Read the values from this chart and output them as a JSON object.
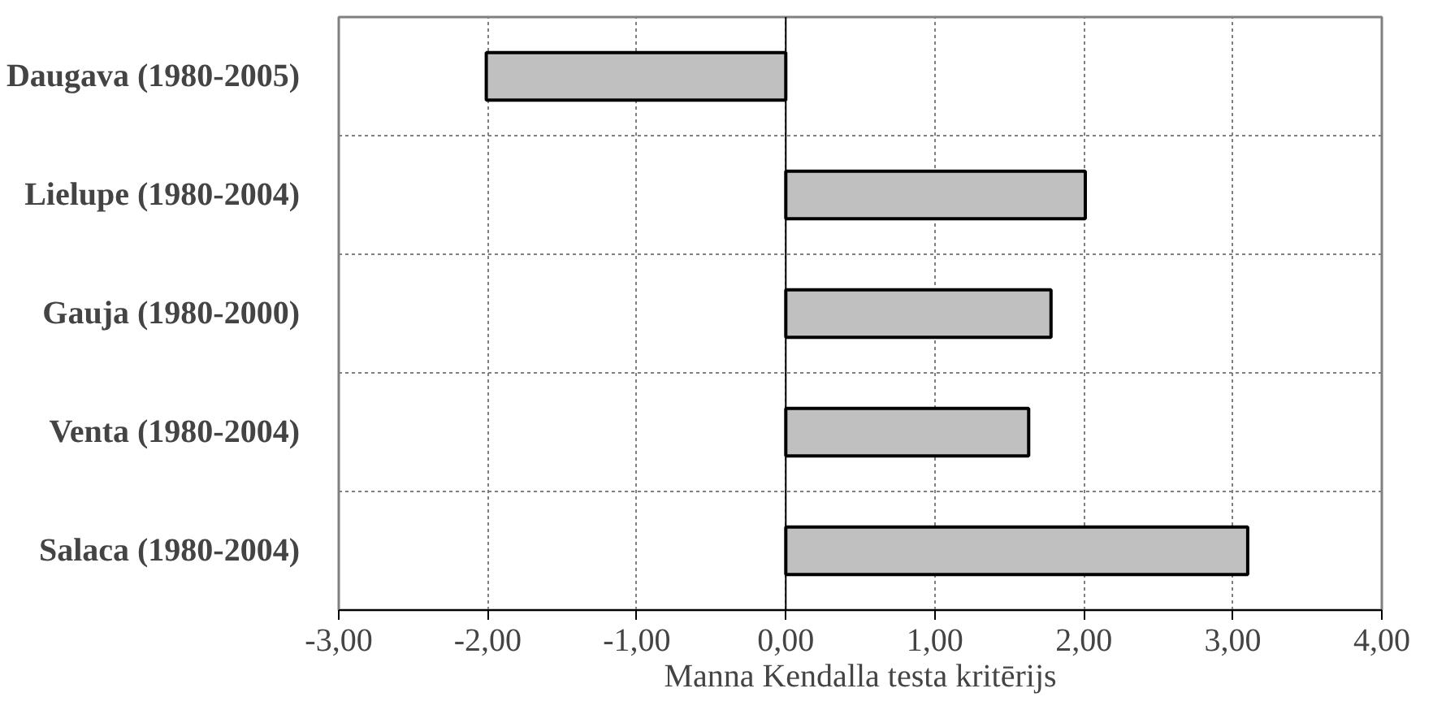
{
  "chart_data": {
    "type": "bar",
    "orientation": "horizontal",
    "categories": [
      "Daugava (1980-2005)",
      "Lielupe (1980-2004)",
      "Gauja (1980-2000)",
      "Venta (1980-2004)",
      "Salaca (1980-2004)"
    ],
    "values": [
      -2.01,
      2.01,
      1.78,
      1.63,
      3.1
    ],
    "color": "#c0c0c0",
    "xlabel": "Manna Kendalla testa kritērijs",
    "xlim": [
      -3,
      4
    ],
    "xticks": [
      {
        "value": -3,
        "label": "-3,00"
      },
      {
        "value": -2,
        "label": "-2,00"
      },
      {
        "value": -1,
        "label": "-1,00"
      },
      {
        "value": 0,
        "label": "0,00"
      },
      {
        "value": 1,
        "label": "1,00"
      },
      {
        "value": 2,
        "label": "2,00"
      },
      {
        "value": 3,
        "label": "3,00"
      },
      {
        "value": 4,
        "label": "4,00"
      }
    ],
    "grid": true
  }
}
